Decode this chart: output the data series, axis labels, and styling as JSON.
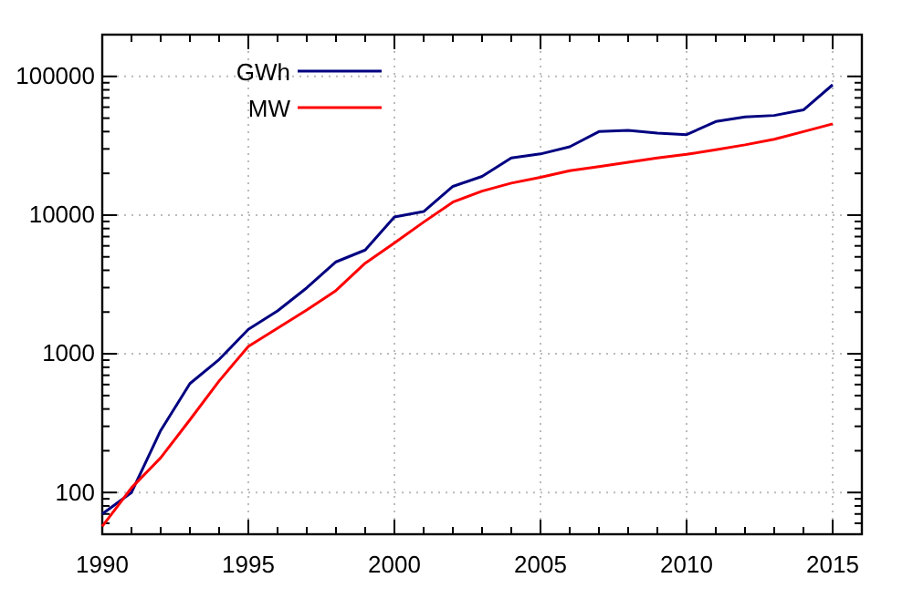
{
  "chart_data": {
    "type": "line",
    "log": "y",
    "grid": true,
    "legend": "top left",
    "line_style": "solid",
    "marker": "none",
    "x": [
      1990,
      1991,
      1992,
      1993,
      1994,
      1995,
      1996,
      1997,
      1998,
      1999,
      2000,
      2001,
      2002,
      2003,
      2004,
      2005,
      2006,
      2007,
      2008,
      2009,
      2010,
      2011,
      2012,
      2013,
      2014,
      2015
    ],
    "xlim": [
      1990,
      2016
    ],
    "xticks": [
      1990,
      {
        "value": 1991,
        "label": null
      },
      {
        "value": 1992,
        "label": null
      },
      {
        "value": 1993,
        "label": null
      },
      {
        "value": 1994,
        "label": null
      },
      1995,
      {
        "value": 1996,
        "label": null
      },
      {
        "value": 1997,
        "label": null
      },
      {
        "value": 1998,
        "label": null
      },
      {
        "value": 1999,
        "label": null
      },
      2000,
      {
        "value": 2001,
        "label": null
      },
      {
        "value": 2002,
        "label": null
      },
      {
        "value": 2003,
        "label": null
      },
      {
        "value": 2004,
        "label": null
      },
      2005,
      {
        "value": 2006,
        "label": null
      },
      {
        "value": 2007,
        "label": null
      },
      {
        "value": 2008,
        "label": null
      },
      {
        "value": 2009,
        "label": null
      },
      2010,
      {
        "value": 2011,
        "label": null
      },
      {
        "value": 2012,
        "label": null
      },
      {
        "value": 2013,
        "label": null
      },
      {
        "value": 2014,
        "label": null
      },
      2015
    ],
    "ylim": [
      50,
      200000
    ],
    "yticks": [
      {
        "value": 60,
        "label": null
      },
      {
        "value": 70,
        "label": null
      },
      {
        "value": 80,
        "label": null
      },
      {
        "value": 90,
        "label": null
      },
      100,
      {
        "value": 200,
        "label": null
      },
      {
        "value": 300,
        "label": null
      },
      {
        "value": 400,
        "label": null
      },
      {
        "value": 500,
        "label": null
      },
      {
        "value": 600,
        "label": null
      },
      {
        "value": 700,
        "label": null
      },
      {
        "value": 800,
        "label": null
      },
      {
        "value": 900,
        "label": null
      },
      1000,
      {
        "value": 2000,
        "label": null
      },
      {
        "value": 3000,
        "label": null
      },
      {
        "value": 4000,
        "label": null
      },
      {
        "value": 5000,
        "label": null
      },
      {
        "value": 6000,
        "label": null
      },
      {
        "value": 7000,
        "label": null
      },
      {
        "value": 8000,
        "label": null
      },
      {
        "value": 9000,
        "label": null
      },
      10000,
      {
        "value": 20000,
        "label": null
      },
      {
        "value": 30000,
        "label": null
      },
      {
        "value": 40000,
        "label": null
      },
      {
        "value": 50000,
        "label": null
      },
      {
        "value": 60000,
        "label": null
      },
      {
        "value": 70000,
        "label": null
      },
      {
        "value": 80000,
        "label": null
      },
      {
        "value": 90000,
        "label": null
      },
      100000,
      {
        "value": 200000,
        "label": null
      }
    ],
    "series": [
      {
        "name": "GWh",
        "color": "#000080",
        "values": [
          70,
          100,
          280,
          610,
          910,
          1500,
          2040,
          2990,
          4600,
          5600,
          9700,
          10600,
          16100,
          19000,
          25800,
          27600,
          31100,
          40000,
          40800,
          39000,
          38000,
          47300,
          51000,
          52300,
          57300,
          87000
        ]
      },
      {
        "name": "MW",
        "color": "#ff0000",
        "values": [
          57,
          108,
          178,
          334,
          637,
          1130,
          1530,
          2070,
          2860,
          4500,
          6300,
          8900,
          12400,
          14900,
          17000,
          18700,
          20900,
          22400,
          24000,
          25800,
          27400,
          29600,
          32100,
          35200,
          40000,
          45500
        ]
      }
    ]
  }
}
